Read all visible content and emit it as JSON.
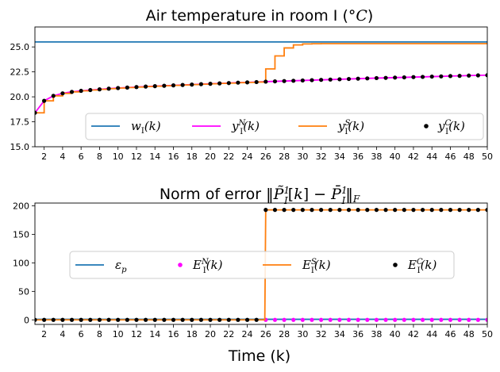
{
  "chart_data": [
    {
      "type": "line",
      "title": "Air temperature in room I (°C)",
      "xlabel": "",
      "ylabel": "",
      "xlim": [
        1,
        50
      ],
      "ylim": [
        15,
        27
      ],
      "xticks": [
        2,
        4,
        6,
        8,
        10,
        12,
        14,
        16,
        18,
        20,
        22,
        24,
        26,
        28,
        30,
        32,
        34,
        36,
        38,
        40,
        42,
        44,
        46,
        48,
        50
      ],
      "yticks": [
        "15.0",
        "17.5",
        "20.0",
        "22.5",
        "25.0"
      ],
      "legend_position": "lower-right",
      "grid": false,
      "series": [
        {
          "name": "w_I(k)",
          "style": "line",
          "color": "#1f77b4",
          "x": [
            1,
            50
          ],
          "values": [
            25.5,
            25.5
          ]
        },
        {
          "name": "y_I^N(k)",
          "style": "line",
          "color": "#ff00ff",
          "x": [
            1,
            2,
            3,
            4,
            5,
            6,
            7,
            8,
            9,
            10,
            11,
            12,
            13,
            14,
            15,
            16,
            17,
            18,
            19,
            20,
            21,
            22,
            23,
            24,
            25,
            26,
            27,
            28,
            29,
            30,
            31,
            32,
            33,
            34,
            35,
            36,
            37,
            38,
            39,
            40,
            41,
            42,
            43,
            44,
            45,
            46,
            47,
            48,
            49,
            50
          ],
          "values": [
            18.4,
            19.6,
            20.1,
            20.35,
            20.5,
            20.6,
            20.68,
            20.75,
            20.82,
            20.88,
            20.93,
            20.98,
            21.03,
            21.07,
            21.11,
            21.15,
            21.19,
            21.23,
            21.27,
            21.31,
            21.35,
            21.38,
            21.42,
            21.45,
            21.48,
            21.52,
            21.55,
            21.58,
            21.61,
            21.64,
            21.67,
            21.7,
            21.73,
            21.76,
            21.79,
            21.82,
            21.85,
            21.88,
            21.9,
            21.93,
            21.95,
            21.98,
            22.0,
            22.03,
            22.05,
            22.08,
            22.1,
            22.13,
            22.15,
            22.17
          ]
        },
        {
          "name": "y_I^S(k)",
          "style": "step",
          "color": "#ff7f0e",
          "x": [
            1,
            2,
            3,
            4,
            5,
            6,
            7,
            8,
            9,
            10,
            11,
            12,
            13,
            14,
            15,
            16,
            17,
            18,
            19,
            20,
            21,
            22,
            23,
            24,
            25,
            26,
            27,
            28,
            29,
            30,
            31,
            32,
            33,
            34,
            35,
            36,
            37,
            38,
            39,
            40,
            41,
            42,
            43,
            44,
            45,
            46,
            47,
            48,
            49,
            50
          ],
          "values": [
            18.4,
            19.6,
            20.1,
            20.35,
            20.5,
            20.6,
            20.68,
            20.75,
            20.82,
            20.88,
            20.93,
            20.98,
            21.03,
            21.07,
            21.11,
            21.15,
            21.19,
            21.23,
            21.27,
            21.31,
            21.35,
            21.38,
            21.42,
            21.45,
            21.48,
            22.8,
            24.1,
            24.9,
            25.2,
            25.3,
            25.32,
            25.33,
            25.33,
            25.33,
            25.33,
            25.33,
            25.33,
            25.33,
            25.33,
            25.33,
            25.33,
            25.33,
            25.33,
            25.33,
            25.33,
            25.33,
            25.33,
            25.33,
            25.33,
            25.33
          ]
        },
        {
          "name": "y_I^C(k)",
          "style": "markers",
          "color": "#000000",
          "x": [
            1,
            2,
            3,
            4,
            5,
            6,
            7,
            8,
            9,
            10,
            11,
            12,
            13,
            14,
            15,
            16,
            17,
            18,
            19,
            20,
            21,
            22,
            23,
            24,
            25,
            26,
            27,
            28,
            29,
            30,
            31,
            32,
            33,
            34,
            35,
            36,
            37,
            38,
            39,
            40,
            41,
            42,
            43,
            44,
            45,
            46,
            47,
            48,
            49,
            50
          ],
          "values": [
            18.4,
            19.6,
            20.1,
            20.35,
            20.5,
            20.6,
            20.68,
            20.75,
            20.82,
            20.88,
            20.93,
            20.98,
            21.03,
            21.07,
            21.11,
            21.15,
            21.19,
            21.23,
            21.27,
            21.31,
            21.35,
            21.38,
            21.42,
            21.45,
            21.48,
            21.52,
            21.55,
            21.58,
            21.61,
            21.64,
            21.67,
            21.7,
            21.73,
            21.76,
            21.79,
            21.82,
            21.85,
            21.88,
            21.9,
            21.93,
            21.95,
            21.98,
            22.0,
            22.03,
            22.05,
            22.08,
            22.1,
            22.13,
            22.15,
            22.17
          ]
        }
      ]
    },
    {
      "type": "line",
      "title": "Norm of error ‖P̃_I^1[k] − P̄_I^1‖_F",
      "xlabel": "Time (k)",
      "ylabel": "",
      "xlim": [
        1,
        50
      ],
      "ylim": [
        -8,
        205
      ],
      "xticks": [
        2,
        4,
        6,
        8,
        10,
        12,
        14,
        16,
        18,
        20,
        22,
        24,
        26,
        28,
        30,
        32,
        34,
        36,
        38,
        40,
        42,
        44,
        46,
        48,
        50
      ],
      "yticks": [
        "0",
        "50",
        "100",
        "150",
        "200"
      ],
      "legend_position": "center",
      "grid": false,
      "series": [
        {
          "name": "ε_p",
          "style": "line",
          "color": "#1f77b4",
          "x": [
            1,
            50
          ],
          "values": [
            1,
            1
          ]
        },
        {
          "name": "E_I^N(k)",
          "style": "markers",
          "color": "#ff00ff",
          "x": [
            26,
            27,
            28,
            29,
            30,
            31,
            32,
            33,
            34,
            35,
            36,
            37,
            38,
            39,
            40,
            41,
            42,
            43,
            44,
            45,
            46,
            47,
            48,
            49,
            50
          ],
          "values": [
            0,
            0,
            0,
            0,
            0,
            0,
            0,
            0,
            0,
            0,
            0,
            0,
            0,
            0,
            0,
            0,
            0,
            0,
            0,
            0,
            0,
            0,
            0,
            0,
            0
          ]
        },
        {
          "name": "E_I^S(k)",
          "style": "line",
          "color": "#ff7f0e",
          "x": [
            1,
            25.9,
            26,
            50
          ],
          "values": [
            0,
            0,
            193,
            193
          ]
        },
        {
          "name": "E_I^C(k)",
          "style": "markers",
          "color": "#000000",
          "x": [
            1,
            2,
            3,
            4,
            5,
            6,
            7,
            8,
            9,
            10,
            11,
            12,
            13,
            14,
            15,
            16,
            17,
            18,
            19,
            20,
            21,
            22,
            23,
            24,
            25,
            26,
            27,
            28,
            29,
            30,
            31,
            32,
            33,
            34,
            35,
            36,
            37,
            38,
            39,
            40,
            41,
            42,
            43,
            44,
            45,
            46,
            47,
            48,
            49,
            50
          ],
          "values": [
            0,
            0,
            0,
            0,
            0,
            0,
            0,
            0,
            0,
            0,
            0,
            0,
            0,
            0,
            0,
            0,
            0,
            0,
            0,
            0,
            0,
            0,
            0,
            0,
            0,
            193,
            193,
            193,
            193,
            193,
            193,
            193,
            193,
            193,
            193,
            193,
            193,
            193,
            193,
            193,
            193,
            193,
            193,
            193,
            193,
            193,
            193,
            193,
            193,
            193
          ]
        }
      ]
    }
  ]
}
